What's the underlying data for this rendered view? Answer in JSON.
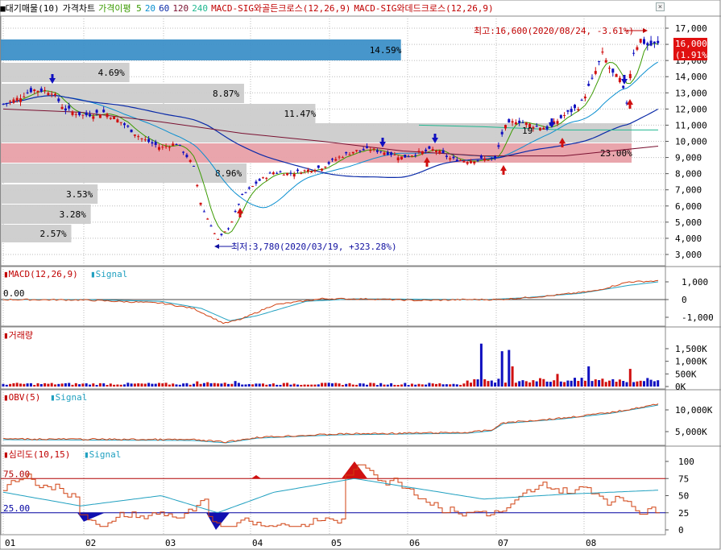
{
  "header": {
    "items": [
      {
        "label": "대기매물(10)",
        "color": "#000000"
      },
      {
        "label": "가격차트",
        "color": "#000000"
      },
      {
        "label": "가격이평 5",
        "color": "#3a9a00"
      },
      {
        "label": "20",
        "color": "#0a8fd0"
      },
      {
        "label": "60",
        "color": "#0a2aa8"
      },
      {
        "label": "120",
        "color": "#7a1030"
      },
      {
        "label": "240",
        "color": "#20b890"
      },
      {
        "label": "MACD-SIG와골든크로스(12,26,9)",
        "color": "#c00000"
      },
      {
        "label": "MACD-SIG와데드크로스(12,26,9)",
        "color": "#c00000"
      }
    ]
  },
  "overhang": {
    "bars": [
      {
        "label": "14.59%",
        "value": 14.59,
        "color": "#3d90c8"
      },
      {
        "label": "4.69%",
        "value": 4.69,
        "color": "#cccccc"
      },
      {
        "label": "8.87%",
        "value": 8.87,
        "color": "#cccccc"
      },
      {
        "label": "11.47%",
        "value": 11.47,
        "color": "#cccccc"
      },
      {
        "label": "",
        "value": 23.0,
        "color": "#cccccc"
      },
      {
        "label": "23.00%",
        "value": 23.0,
        "color": "#e8a0a8"
      },
      {
        "label": "8.96%",
        "value": 8.96,
        "color": "#cccccc"
      },
      {
        "label": "3.53%",
        "value": 3.53,
        "color": "#cccccc"
      },
      {
        "label": "3.28%",
        "value": 3.28,
        "color": "#cccccc"
      },
      {
        "label": "2.57%",
        "value": 2.57,
        "color": "#cccccc"
      }
    ]
  },
  "price_panel": {
    "y_ticks": [
      "17,000",
      "16,000",
      "15,000",
      "14,000",
      "13,000",
      "12,000",
      "11,000",
      "10,000",
      "9,000",
      "8,000",
      "7,000",
      "6,000",
      "5,000",
      "4,000",
      "3,000"
    ],
    "current_price": "16,000",
    "current_change": "(1.91%)",
    "high_note": "최고:16,600(2020/08/24, -3.61%)",
    "low_note": "최저:3,780(2020/03/19, +323.28%)",
    "ma_note": "19"
  },
  "macd_panel": {
    "title": "MACD(12,26,9)",
    "signal": "Signal",
    "zero_label": "0.00",
    "y_ticks": [
      "1,000",
      "0",
      "-1,000"
    ]
  },
  "volume_panel": {
    "title": "거래량",
    "y_ticks": [
      "1,500K",
      "1,000K",
      "500K",
      "0K"
    ]
  },
  "obv_panel": {
    "title": "OBV(5)",
    "signal": "Signal",
    "y_ticks": [
      "10,000K",
      "5,000K"
    ]
  },
  "psy_panel": {
    "title": "심리도(10,15)",
    "signal": "Signal",
    "upper_label": "75.00",
    "lower_label": "25.00",
    "y_ticks": [
      "100",
      "75",
      "50",
      "25",
      "0"
    ]
  },
  "x_axis": {
    "labels": [
      "01",
      "02",
      "03",
      "04",
      "05",
      "06",
      "07",
      "08"
    ]
  },
  "colors": {
    "up": "#d01010",
    "down": "#1010c0",
    "grid": "#bbbbbb"
  }
}
